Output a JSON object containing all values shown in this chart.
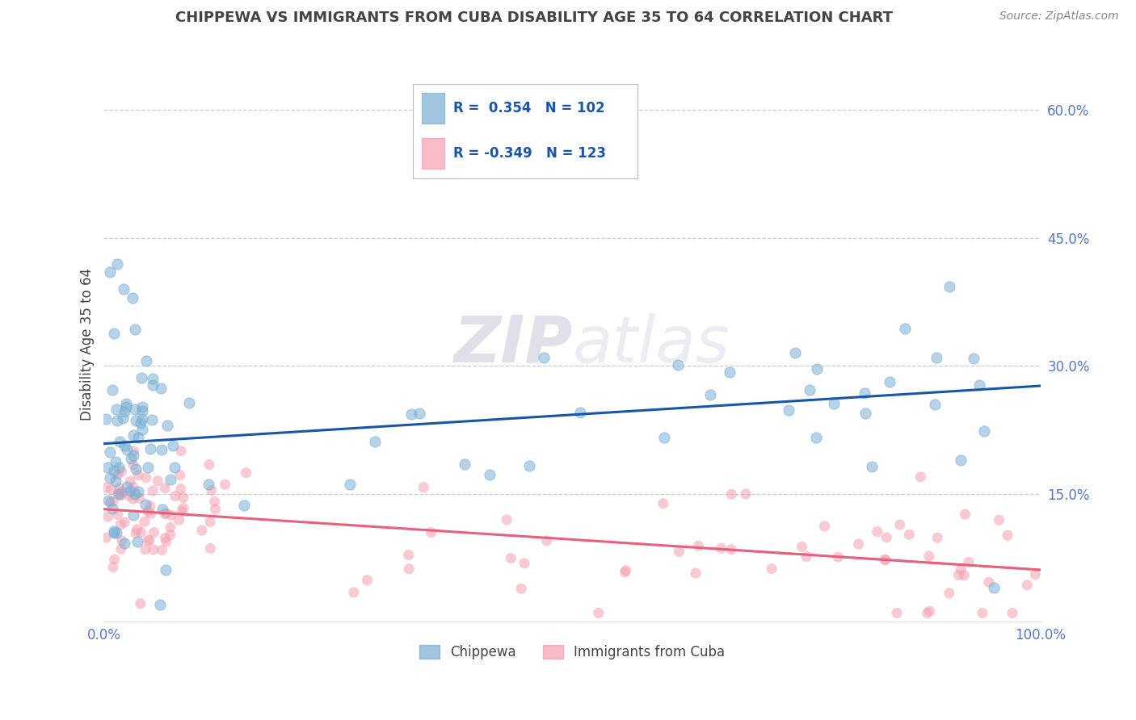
{
  "title": "CHIPPEWA VS IMMIGRANTS FROM CUBA DISABILITY AGE 35 TO 64 CORRELATION CHART",
  "source_text": "Source: ZipAtlas.com",
  "ylabel": "Disability Age 35 to 64",
  "xlim": [
    0,
    1.0
  ],
  "ylim": [
    0.0,
    0.65
  ],
  "ytick_positions": [
    0.15,
    0.3,
    0.45,
    0.6
  ],
  "ytick_labels": [
    "15.0%",
    "30.0%",
    "45.0%",
    "60.0%"
  ],
  "xtick_positions": [
    0.0,
    0.25,
    0.5,
    0.75,
    1.0
  ],
  "xtick_labels": [
    "0.0%",
    "",
    "",
    "",
    "100.0%"
  ],
  "chippewa_R": 0.354,
  "chippewa_N": 102,
  "cuba_R": -0.349,
  "cuba_N": 123,
  "blue_scatter_color": "#7BAFD4",
  "pink_scatter_color": "#F4A0B0",
  "blue_line_color": "#1A56A8",
  "pink_line_color": "#E8607A",
  "background_color": "#FFFFFF",
  "grid_color": "#CCCCCC",
  "title_color": "#444444",
  "tick_color": "#5577CC",
  "legend_text_color": "#1A56A8",
  "watermark_color": "#DDDDE8"
}
